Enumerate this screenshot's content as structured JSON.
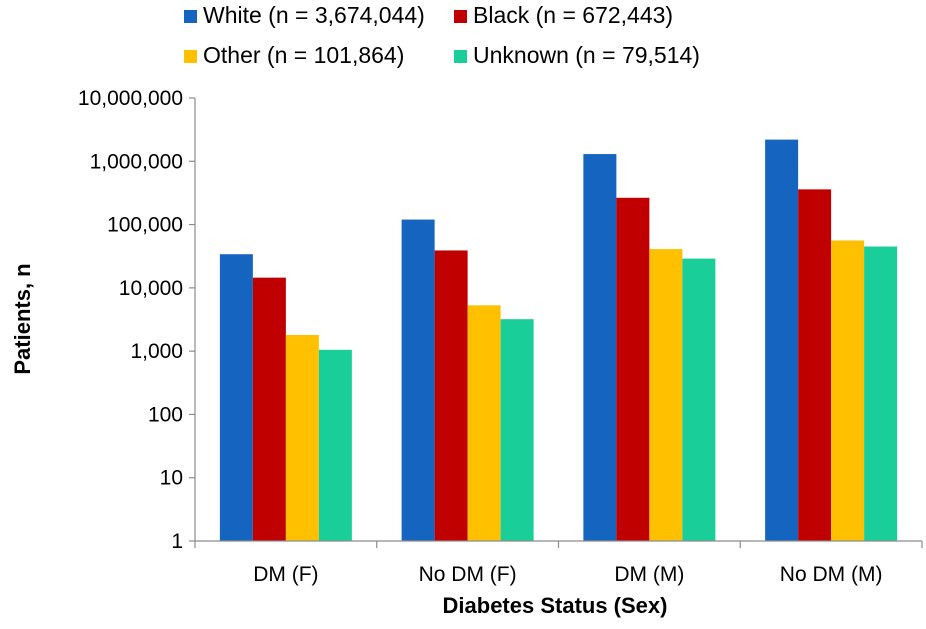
{
  "chart_data": {
    "type": "bar",
    "title": "",
    "xlabel": "Diabetes Status (Sex)",
    "ylabel": "Patients, n",
    "yscale": "log",
    "ylim": [
      1,
      10000000
    ],
    "yticks": [
      1,
      10,
      100,
      1000,
      10000,
      100000,
      1000000,
      10000000
    ],
    "ytick_labels": [
      "1",
      "10",
      "100",
      "1,000",
      "10,000",
      "100,000",
      "1,000,000",
      "10,000,000"
    ],
    "grid": false,
    "legend_position": "top",
    "categories": [
      "DM (F)",
      "No DM (F)",
      "DM (M)",
      "No DM (M)"
    ],
    "series": [
      {
        "name": "White (n = 3,674,044)",
        "color": "#1565C0",
        "values": [
          34000,
          120000,
          1300000,
          2200000
        ]
      },
      {
        "name": "Black (n = 672,443)",
        "color": "#C00000",
        "values": [
          14500,
          39000,
          265000,
          360000
        ]
      },
      {
        "name": "Other (n = 101,864)",
        "color": "#FFC000",
        "values": [
          1800,
          5300,
          41000,
          56000
        ]
      },
      {
        "name": "Unknown (n = 79,514)",
        "color": "#1ACE99",
        "values": [
          1050,
          3200,
          29000,
          45000
        ]
      }
    ]
  }
}
